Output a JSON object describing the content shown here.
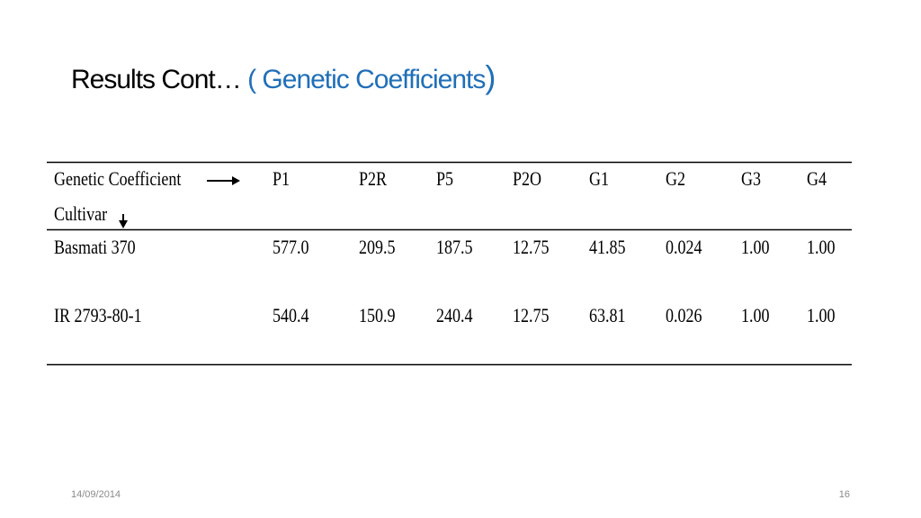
{
  "title": {
    "main": "Results Cont…",
    "highlight": "( Genetic Coefficients",
    "close": ")"
  },
  "table": {
    "corner_top": "Genetic Coefficient",
    "corner_bottom": "Cultivar",
    "columns": [
      "P1",
      "P2R",
      "P5",
      "P2O",
      "G1",
      "G2",
      "G3",
      "G4"
    ],
    "rows": [
      [
        "Basmati 370",
        "577.0",
        "209.5",
        "187.5",
        "12.75",
        "41.85",
        "0.024",
        "1.00",
        "1.00"
      ],
      [
        "IR 2793-80-1",
        "540.4",
        "150.9",
        "240.4",
        "12.75",
        "63.81",
        "0.026",
        "1.00",
        "1.00"
      ]
    ]
  },
  "footer": {
    "date": "14/09/2014",
    "page": "16"
  }
}
